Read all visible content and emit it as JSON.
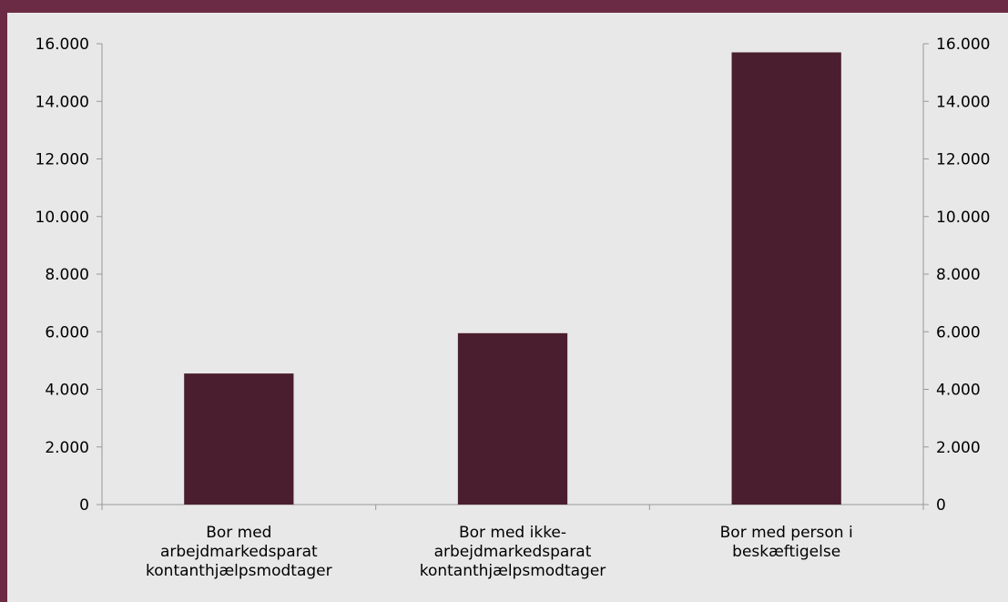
{
  "chart_data": {
    "type": "bar",
    "categories": [
      [
        "Bor med",
        "arbejdmarkedsparat",
        "kontanthjælpsmodtager"
      ],
      [
        "Bor med ikke-",
        "arbejdmarkedsparat",
        "kontanthjælpsmodtager"
      ],
      [
        "Bor med person i",
        "beskæftigelse"
      ]
    ],
    "values": [
      4550,
      5950,
      15700
    ],
    "ylim": [
      0,
      16000
    ],
    "yticks": [
      "0",
      "2.000",
      "4.000",
      "6.000",
      "8.000",
      "10.000",
      "12.000",
      "14.000",
      "16.000"
    ],
    "secondary_axis": true,
    "grid": false,
    "legend": "none",
    "title": "",
    "xlabel": "",
    "ylabel": ""
  },
  "colors": {
    "bar": "#4a1e2e",
    "frame": "#6b2b44",
    "plot_bg": "#e8e8e8",
    "axis": "#999999"
  }
}
